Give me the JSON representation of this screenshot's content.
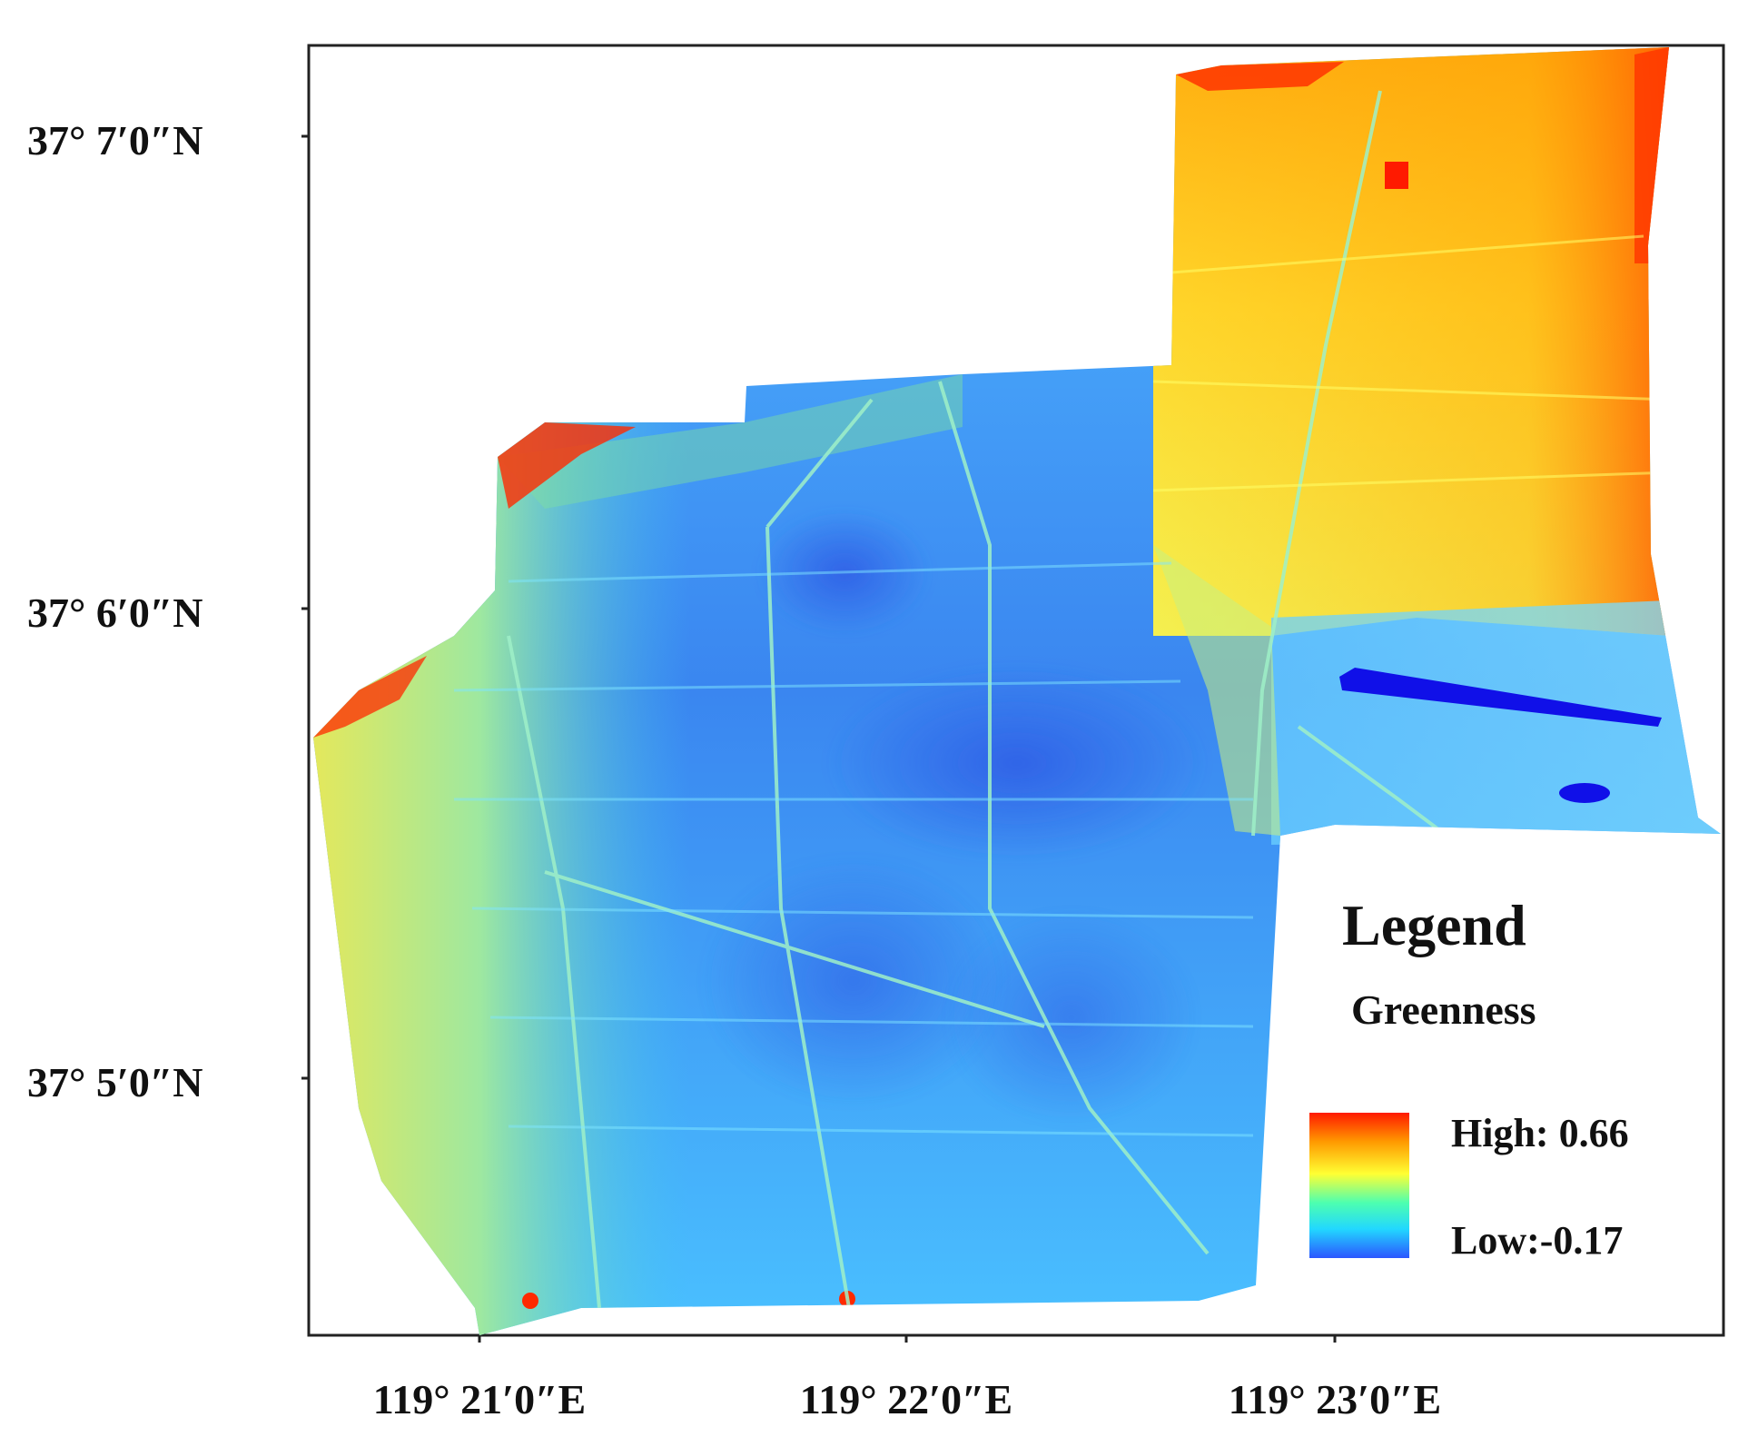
{
  "map": {
    "latitude_ticks": [
      "37° 7′0″N",
      "37° 6′0″N",
      "37° 5′0″N"
    ],
    "longitude_ticks": [
      "119° 21′0″E",
      "119° 22′0″E",
      "119° 23′0″E"
    ]
  },
  "legend": {
    "title": "Legend",
    "variable": "Greenness",
    "high_label": "High: 0.66",
    "low_label": "Low:-0.17",
    "high_value": 0.66,
    "low_value": -0.17,
    "ramp_colors": [
      "#ff1a00",
      "#ff9a00",
      "#ffff33",
      "#4dffb0",
      "#22d8ff",
      "#2b56ff"
    ]
  },
  "colors": {
    "frame": "#222222",
    "background": "#ffffff"
  }
}
